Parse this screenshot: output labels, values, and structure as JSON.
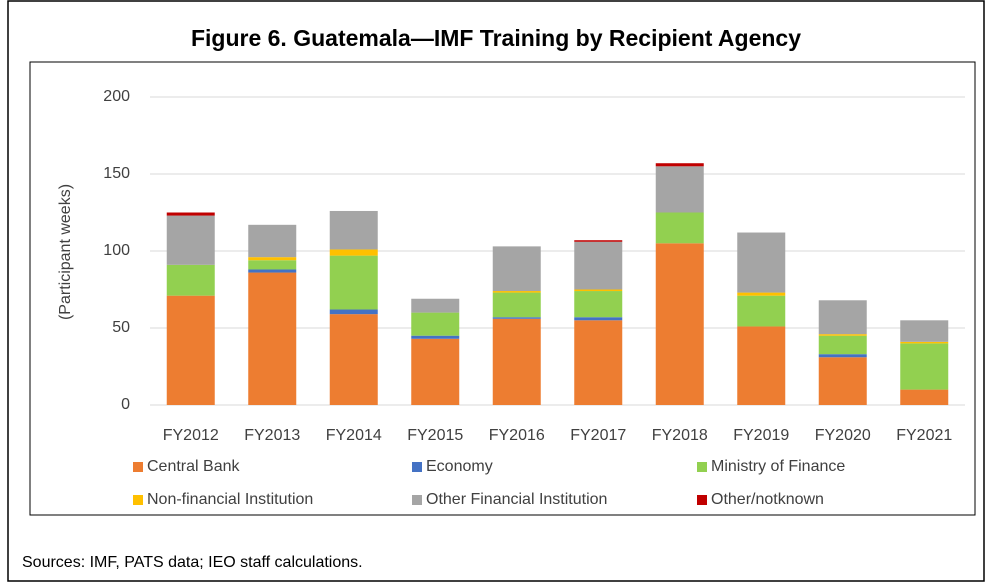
{
  "chart_data": {
    "type": "stacked-bar",
    "title": "Figure 6. Guatemala—IMF Training by Recipient Agency",
    "y_label": "(Participant weeks)",
    "source": "Sources: IMF, PATS data; IEO staff calculations.",
    "categories": [
      "FY2012",
      "FY2013",
      "FY2014",
      "FY2015",
      "FY2016",
      "FY2017",
      "FY2018",
      "FY2019",
      "FY2020",
      "FY2021"
    ],
    "series": [
      {
        "name": "Central Bank",
        "color": "#ed7d31",
        "values": [
          71,
          86,
          59,
          43,
          56,
          55,
          105,
          51,
          31,
          10
        ]
      },
      {
        "name": "Economy",
        "color": "#4472c4",
        "values": [
          0,
          2,
          3,
          2,
          1,
          2,
          0,
          0,
          2,
          0
        ]
      },
      {
        "name": "Ministry of Finance",
        "color": "#92d050",
        "values": [
          20,
          6,
          35,
          15,
          16,
          17,
          20,
          20,
          12,
          30
        ]
      },
      {
        "name": "Non-financial Institution",
        "color": "#ffc000",
        "values": [
          0,
          2,
          4,
          0,
          1,
          1,
          0,
          2,
          1,
          1
        ]
      },
      {
        "name": "Other Financial Institution",
        "color": "#a5a5a5",
        "values": [
          32,
          21,
          25,
          9,
          29,
          31,
          30,
          39,
          22,
          14
        ]
      },
      {
        "name": "Other/notknown",
        "color": "#c00000",
        "values": [
          2,
          0,
          0,
          0,
          0,
          1,
          2,
          0,
          0,
          0
        ]
      }
    ],
    "ylim": [
      0,
      200
    ],
    "yticks": [
      0,
      50,
      100,
      150,
      200
    ],
    "grid": true
  }
}
